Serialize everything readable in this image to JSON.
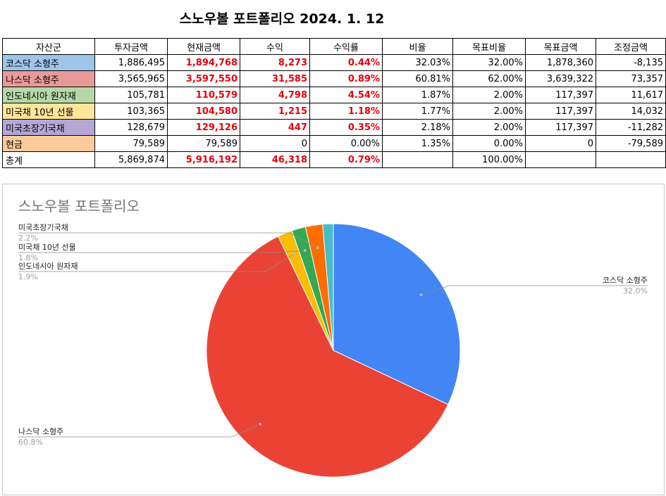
{
  "page_title": "스노우볼 포트폴리오 2024. 1. 12",
  "table": {
    "headers": [
      "자산군",
      "투자금액",
      "현재금액",
      "수익",
      "수익률",
      "비율",
      "목표비율",
      "목표금액",
      "조정금액"
    ],
    "rows": [
      {
        "asset": "코스닥 소형주",
        "color": "#9fc5e8",
        "invest": "1,886,495",
        "current": "1,894,768",
        "profit": "8,273",
        "rate": "0.44%",
        "ratio": "32.03%",
        "target_ratio": "32.00%",
        "target_amount": "1,878,360",
        "adjust": "-8,135"
      },
      {
        "asset": "나스닥 소형주",
        "color": "#ea9999",
        "invest": "3,565,965",
        "current": "3,597,550",
        "profit": "31,585",
        "rate": "0.89%",
        "ratio": "60.81%",
        "target_ratio": "62.00%",
        "target_amount": "3,639,322",
        "adjust": "73,357"
      },
      {
        "asset": "인도네시아 원자재",
        "color": "#b6d7a8",
        "invest": "105,781",
        "current": "110,579",
        "profit": "4,798",
        "rate": "4.54%",
        "ratio": "1.87%",
        "target_ratio": "2.00%",
        "target_amount": "117,397",
        "adjust": "11,617"
      },
      {
        "asset": "미국채 10년 선물",
        "color": "#ffe599",
        "invest": "103,365",
        "current": "104,580",
        "profit": "1,215",
        "rate": "1.18%",
        "ratio": "1.77%",
        "target_ratio": "2.00%",
        "target_amount": "117,397",
        "adjust": "14,032"
      },
      {
        "asset": "미국초장기국채",
        "color": "#b4a7d6",
        "invest": "128,679",
        "current": "129,126",
        "profit": "447",
        "rate": "0.35%",
        "ratio": "2.18%",
        "target_ratio": "2.00%",
        "target_amount": "117,397",
        "adjust": "-11,282"
      },
      {
        "asset": "현금",
        "color": "#f9cb9c",
        "invest": "79,589",
        "current": "79,589",
        "profit": "0",
        "rate": "0.00%",
        "ratio": "1.35%",
        "target_ratio": "0.00%",
        "target_amount": "0",
        "adjust": "-79,589"
      }
    ],
    "total": {
      "asset": "총계",
      "invest": "5,869,874",
      "current": "5,916,192",
      "profit": "46,318",
      "rate": "0.79%",
      "ratio": "",
      "target_ratio": "100.00%",
      "target_amount": "",
      "adjust": ""
    }
  },
  "chart_data": {
    "type": "pie",
    "title": "스노우볼 포트폴리오",
    "start_angle_deg": 0,
    "direction": "clockwise",
    "slices": [
      {
        "label": "코스닥 소형주",
        "value": 32.03,
        "pct_label": "32.0%",
        "color": "#4285f4",
        "show_label": true
      },
      {
        "label": "나스닥 소형주",
        "value": 60.81,
        "pct_label": "60.8%",
        "color": "#ea4335",
        "show_label": true
      },
      {
        "label": "인도네시아 원자재",
        "value": 1.87,
        "pct_label": "1.9%",
        "color": "#fbbc04",
        "show_label": true
      },
      {
        "label": "미국채 10년 선물",
        "value": 1.77,
        "pct_label": "1.8%",
        "color": "#34a853",
        "show_label": true
      },
      {
        "label": "미국초장기국채",
        "value": 2.18,
        "pct_label": "2.2%",
        "color": "#ff6d01",
        "show_label": true
      },
      {
        "label": "현금",
        "value": 1.35,
        "pct_label": "",
        "color": "#46bdc6",
        "show_label": false
      }
    ]
  }
}
